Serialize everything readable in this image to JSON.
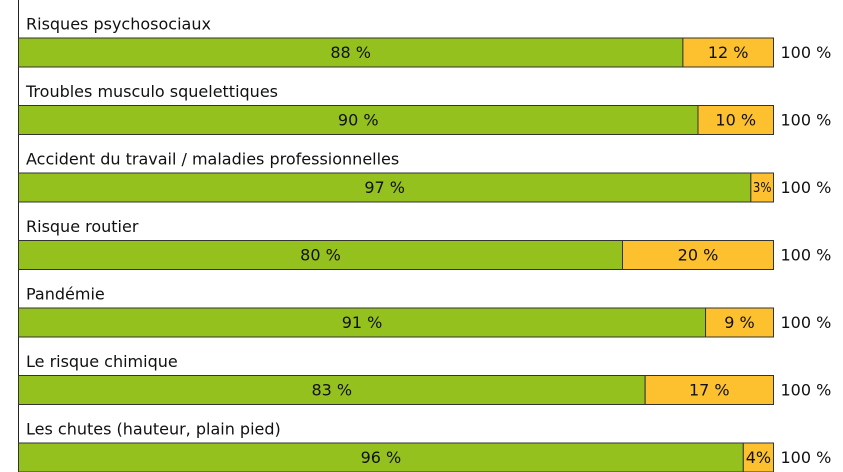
{
  "chart_data": {
    "type": "bar",
    "orientation": "horizontal",
    "stacked": true,
    "categories": [
      "Risques psychosociaux",
      "Troubles musculo squelettiques",
      "Accident du travail / maladies professionnelles",
      "Risque routier",
      "Pandémie",
      "Le risque chimique",
      "Les chutes (hauteur, plain pied)"
    ],
    "series": [
      {
        "color": "#95c11f",
        "values": [
          88,
          90,
          97,
          80,
          91,
          83,
          96
        ],
        "value_labels": [
          "88 %",
          "90 %",
          "97 %",
          "80 %",
          "91 %",
          "83 %",
          "96 %"
        ]
      },
      {
        "color": "#fdc130",
        "values": [
          12,
          10,
          3,
          20,
          9,
          17,
          4
        ],
        "value_labels": [
          "12 %",
          "10 %",
          "3%",
          "20 %",
          "9 %",
          "17 %",
          "4%"
        ]
      }
    ],
    "totals": [
      100,
      100,
      100,
      100,
      100,
      100,
      100
    ],
    "total_labels": [
      "100 %",
      "100 %",
      "100 %",
      "100 %",
      "100 %",
      "100 %",
      "100 %"
    ]
  }
}
